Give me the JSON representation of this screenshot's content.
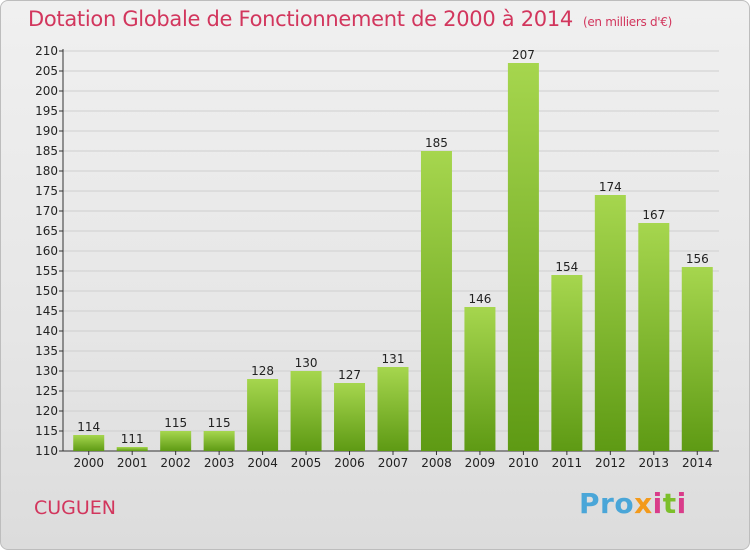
{
  "header": {
    "title": "Dotation Globale de Fonctionnement de 2000 à 2014",
    "unit": "(en milliers d'€)"
  },
  "footer": {
    "commune": "CUGUEN",
    "logo": [
      "Pro",
      "x",
      "i",
      "t",
      "i"
    ]
  },
  "colors": {
    "bar_light": "#a6d64e",
    "bar_dark": "#5e9a14",
    "title": "#d2365d"
  },
  "chart_data": {
    "type": "bar",
    "title": "Dotation Globale de Fonctionnement de 2000 à 2014",
    "subtitle": "(en milliers d'€)",
    "xlabel": "",
    "ylabel": "",
    "categories": [
      "2000",
      "2001",
      "2002",
      "2003",
      "2004",
      "2005",
      "2006",
      "2007",
      "2008",
      "2009",
      "2010",
      "2011",
      "2012",
      "2013",
      "2014"
    ],
    "values": [
      114,
      111,
      115,
      115,
      128,
      130,
      127,
      131,
      185,
      146,
      207,
      154,
      174,
      167,
      156
    ],
    "ylim": [
      110,
      210
    ],
    "yticks": [
      110,
      115,
      120,
      125,
      130,
      135,
      140,
      145,
      150,
      155,
      160,
      165,
      170,
      175,
      180,
      185,
      190,
      195,
      200,
      205,
      210
    ],
    "grid": true
  }
}
